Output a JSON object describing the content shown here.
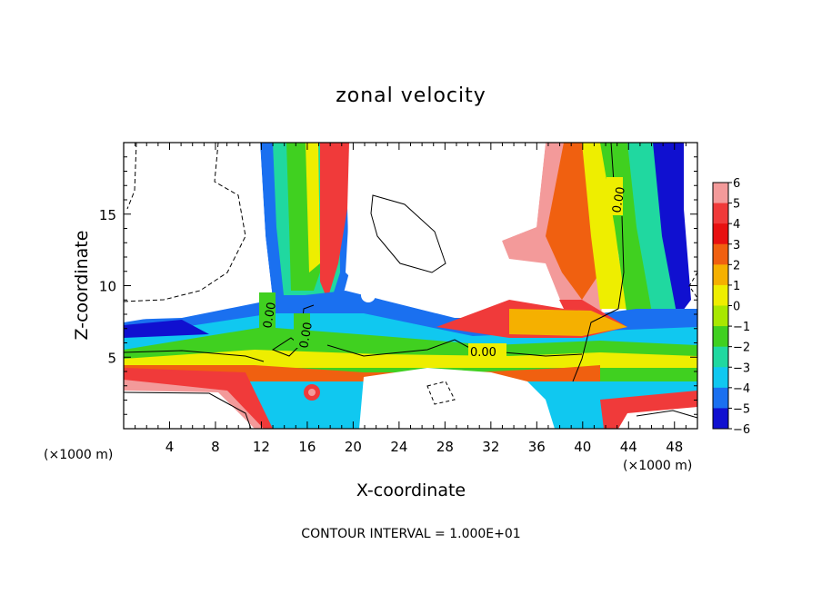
{
  "chart_data": {
    "type": "heatmap",
    "title": "zonal velocity",
    "xlabel": "X-coordinate",
    "ylabel": "Z-coordinate",
    "x_unit": "(×1000 m)",
    "x_unit_right": "(×1000 m)",
    "xlim": [
      0,
      50
    ],
    "ylim": [
      0,
      20
    ],
    "xticks": [
      "4",
      "8",
      "12",
      "16",
      "20",
      "24",
      "28",
      "32",
      "36",
      "40",
      "44",
      "48"
    ],
    "yticks": [
      "5",
      "10",
      "15"
    ],
    "colorbar": {
      "min": -6,
      "max": 6,
      "ticks": [
        "6",
        "5",
        "4",
        "3",
        "2",
        "1",
        "0",
        "−1",
        "−2",
        "−3",
        "−4",
        "−5",
        "−6"
      ],
      "colors": [
        "#f39a9a",
        "#f03a3a",
        "#e81010",
        "#f06010",
        "#f5b000",
        "#eeee00",
        "#a8e800",
        "#40d020",
        "#20d8a0",
        "#10c8f0",
        "#1a70f0",
        "#1010d0",
        "#7000a0"
      ]
    },
    "contour_labels": [
      "0.00",
      "0.00",
      "0.00",
      "0.00"
    ],
    "footer": "CONTOUR INTERVAL = 1.000E+01"
  }
}
